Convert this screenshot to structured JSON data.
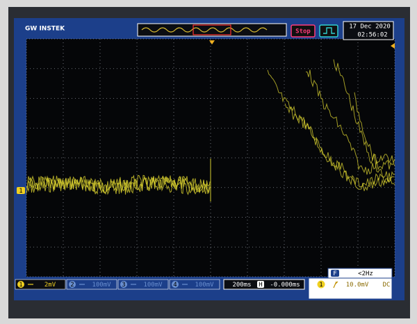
{
  "header": {
    "brand": "GW INSTEK",
    "run_state": "Stop",
    "date": "17 Dec 2020",
    "time": "02:56:02"
  },
  "channels": [
    {
      "number": "1",
      "scale": "2mV"
    },
    {
      "number": "2",
      "scale": "100mV"
    },
    {
      "number": "3",
      "scale": "100mV"
    },
    {
      "number": "4",
      "scale": "100mV"
    }
  ],
  "timebase": {
    "scale": "200ms",
    "position_label": "H",
    "position": "-0.000ms"
  },
  "trigger": {
    "source": "1",
    "level": "10.0mV",
    "coupling": "DC"
  },
  "frequency": {
    "label": "F",
    "value": "<2Hz"
  },
  "markers": {
    "channel": "1"
  }
}
